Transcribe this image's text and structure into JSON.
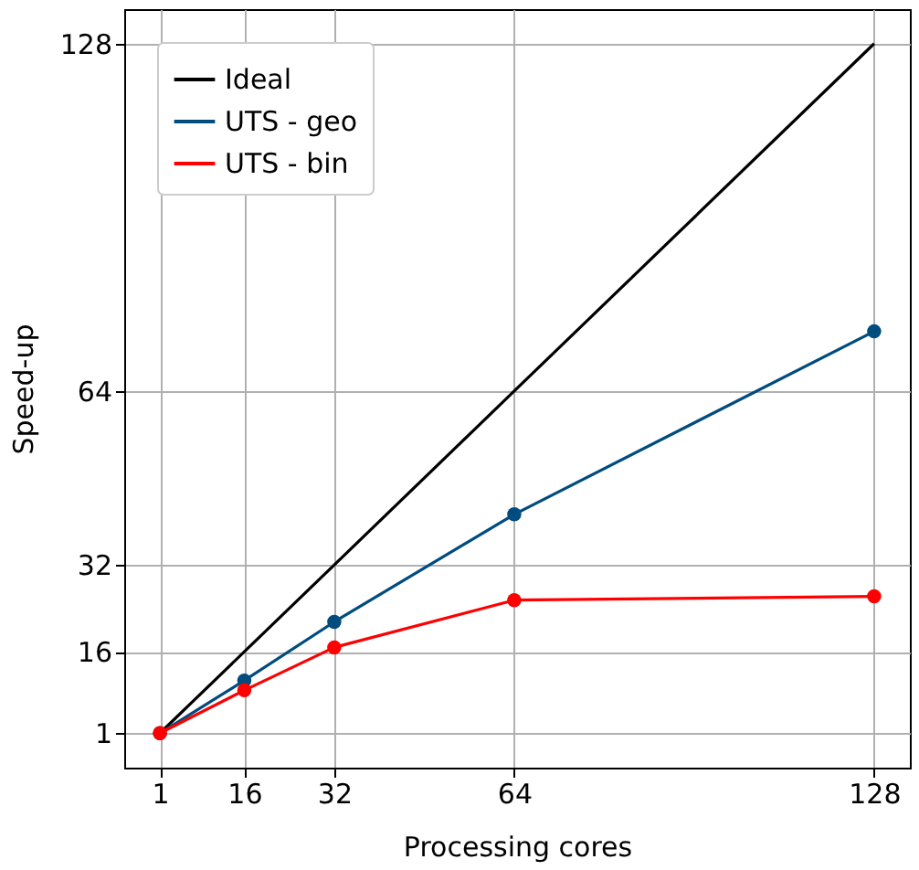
{
  "chart_data": {
    "type": "line",
    "xlabel": "Processing cores",
    "ylabel": "Speed-up",
    "x": [
      1,
      16,
      32,
      64,
      128
    ],
    "series": [
      {
        "name": "Ideal",
        "color": "#000000",
        "values": [
          1,
          16,
          32,
          64,
          128
        ],
        "marker": "none"
      },
      {
        "name": "UTS - geo",
        "color": "#004c7f",
        "values": [
          1,
          10.7,
          21.5,
          41.3,
          75
        ],
        "marker": "circle"
      },
      {
        "name": "UTS - bin",
        "color": "#ff0000",
        "values": [
          1,
          8.9,
          16.8,
          25.5,
          26.2
        ],
        "marker": "circle"
      }
    ],
    "xlim": [
      -5.35,
      134.35
    ],
    "ylim": [
      -5.35,
      134.35
    ],
    "xticks": [
      1,
      16,
      32,
      64,
      128
    ],
    "yticks": [
      1,
      16,
      32,
      64,
      128
    ],
    "grid": true,
    "legend": "top left",
    "line_style": "solid"
  }
}
